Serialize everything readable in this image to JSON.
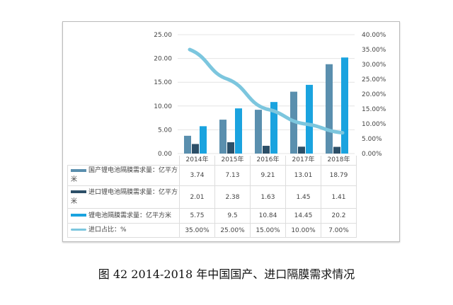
{
  "chart_data": {
    "type": "bar",
    "categories": [
      "2014年",
      "2015年",
      "2016年",
      "2017年",
      "2018年"
    ],
    "series": [
      {
        "name": "国产锂电池隔膜需求量：亿平方米",
        "type": "bar",
        "axis": "left",
        "color": "#5a8fae",
        "values": [
          3.74,
          7.13,
          9.21,
          13.01,
          18.79
        ],
        "labels": [
          "3.74",
          "7.13",
          "9.21",
          "13.01",
          "18.79"
        ]
      },
      {
        "name": "进口锂电池隔膜需求量：亿平方米",
        "type": "bar",
        "axis": "left",
        "color": "#2c4f68",
        "values": [
          2.01,
          2.38,
          1.63,
          1.45,
          1.41
        ],
        "labels": [
          "2.01",
          "2.38",
          "1.63",
          "1.45",
          "1.41"
        ]
      },
      {
        "name": "锂电池隔膜需求量：亿平方米",
        "type": "bar",
        "axis": "left",
        "color": "#1aa3df",
        "values": [
          5.75,
          9.5,
          10.84,
          14.45,
          20.2
        ],
        "labels": [
          "5.75",
          "9.5",
          "10.84",
          "14.45",
          "20.2"
        ]
      },
      {
        "name": "进口占比：%",
        "type": "line",
        "axis": "right",
        "color": "#7cc6de",
        "values": [
          35,
          25,
          15,
          10,
          7
        ],
        "labels": [
          "35.00%",
          "25.00%",
          "15.00%",
          "10.00%",
          "7.00%"
        ]
      }
    ],
    "y_left": {
      "range": [
        0,
        25
      ],
      "ticks": [
        "0.00",
        "5.00",
        "10.00",
        "15.00",
        "20.00",
        "25.00"
      ]
    },
    "y_right": {
      "range": [
        0,
        40
      ],
      "ticks": [
        "0.00%",
        "5.00%",
        "10.00%",
        "15.00%",
        "20.00%",
        "25.00%",
        "30.00%",
        "35.00%",
        "40.00%"
      ]
    },
    "grid": true,
    "legend": "data-table-below"
  },
  "caption": "图 42 2014-2018 年中国国产、进口隔膜需求情况"
}
